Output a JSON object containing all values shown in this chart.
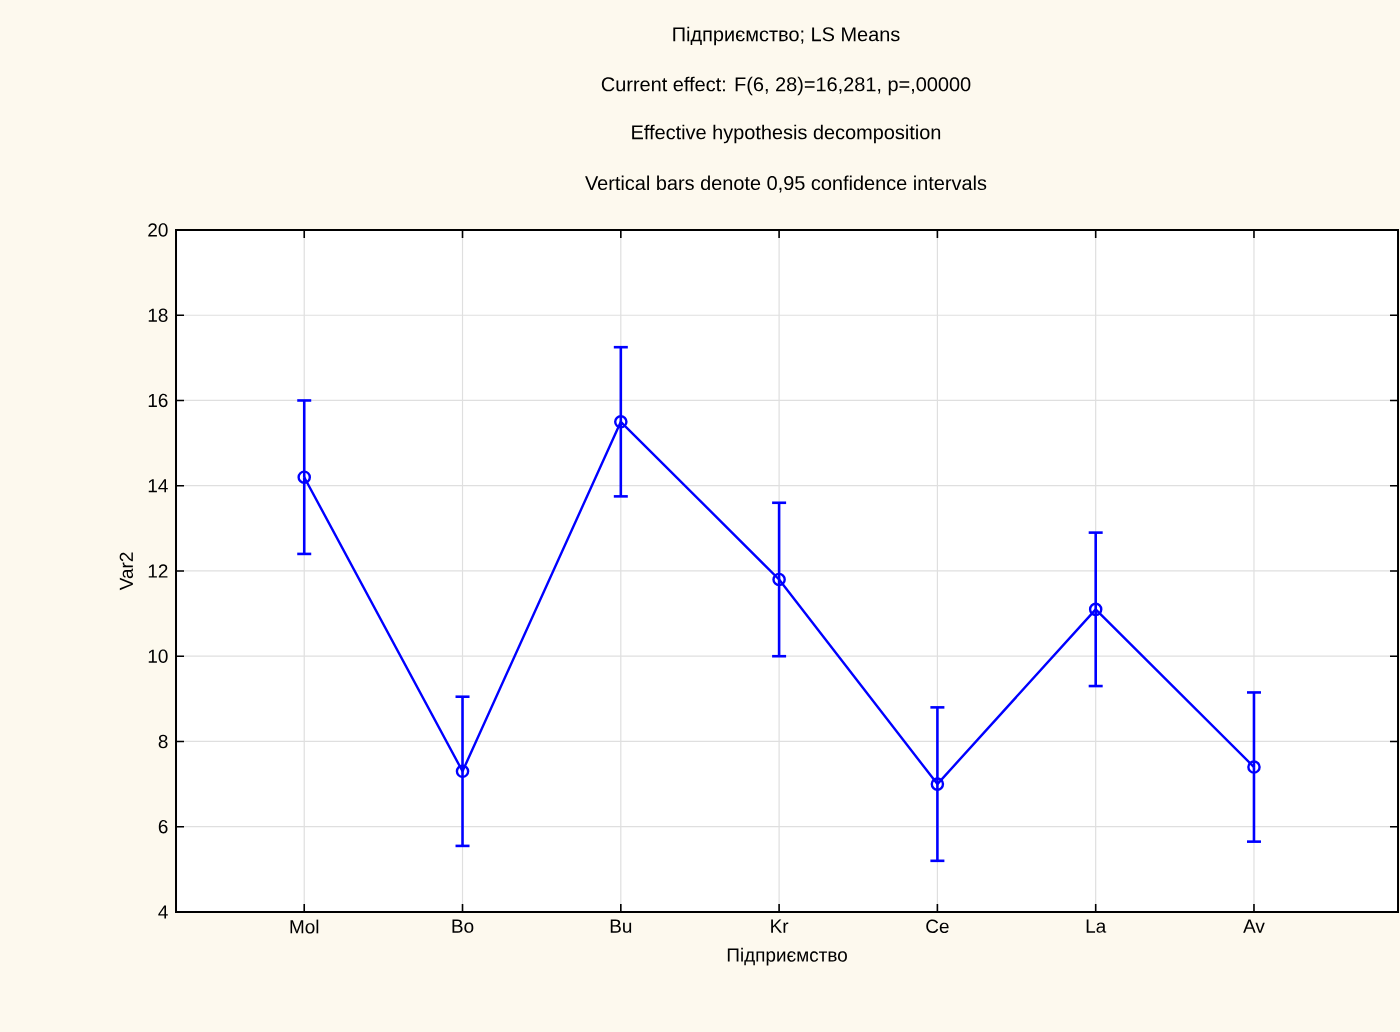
{
  "chart_data": {
    "type": "line",
    "title": "Підприємство; LS Means",
    "subtitle": "Current effect: F(6, 28)=16,281, p=,00000",
    "annotations": [
      "Effective hypothesis decomposition",
      "Vertical bars denote 0,95 confidence intervals"
    ],
    "xlabel": "Підприємство",
    "ylabel": "Var2",
    "categories": [
      "Mol",
      "Bo",
      "Bu",
      "Kr",
      "Ce",
      "La",
      "Av"
    ],
    "series": [
      {
        "color": "#0000ff",
        "values": [
          14.2,
          7.3,
          15.5,
          11.8,
          7.0,
          11.1,
          7.4
        ],
        "errors": [
          1.8,
          1.75,
          1.75,
          1.8,
          1.8,
          1.8,
          1.75
        ]
      }
    ],
    "ylim": [
      4,
      20
    ],
    "yticks": [
      4,
      6,
      8,
      10,
      12,
      14,
      16,
      18,
      20
    ],
    "grid": true,
    "marker": "circle",
    "line_style": "solid"
  }
}
